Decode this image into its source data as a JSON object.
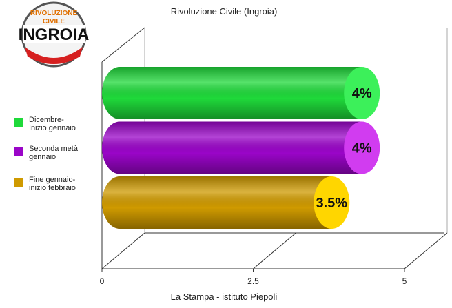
{
  "chart_data": {
    "type": "cylinder-bar",
    "title": "Rivoluzione Civile (Ingroia)",
    "source": "La Stampa - istituto Piepoli",
    "logo": {
      "line1": "RIVOLUZIONE",
      "line2": "CIVILE",
      "line3": "INGROIA"
    },
    "categories": [
      "Dicembre-\nInizio gennaio",
      "Seconda metà\ngennaio",
      "Fine gennaio-\ninizio febbraio"
    ],
    "values": [
      4,
      4,
      3.5
    ],
    "value_labels": [
      "4%",
      "4%",
      "3.5%"
    ],
    "colors": [
      "#1fd93a",
      "#9a05c8",
      "#cf9a00"
    ],
    "cap_colors": [
      "#3cf05a",
      "#d13cf0",
      "#ffd600"
    ],
    "xlim": [
      0,
      5
    ],
    "xticks": [
      0,
      2.5,
      5
    ],
    "grid": true
  }
}
